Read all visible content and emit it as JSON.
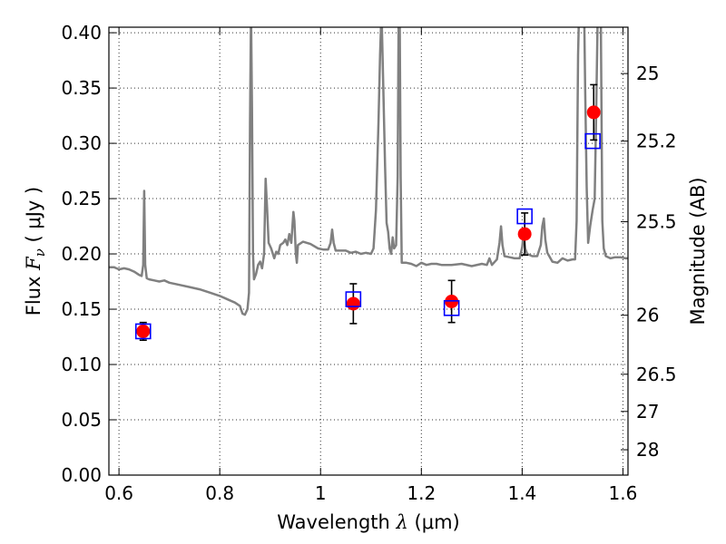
{
  "chart_data": {
    "type": "scatter",
    "xlabel": "Wavelength",
    "xlabel_symbol": "λ",
    "xlabel_unit": "μm",
    "ylabel": "Flux",
    "ylabel_symbol": "F",
    "ylabel_subscript": "ν",
    "ylabel_unit": "μJy",
    "y2label": "Magnitude (AB)",
    "xlim": [
      0.58,
      1.61
    ],
    "ylim": [
      0.0,
      0.405
    ],
    "grid": true,
    "x_ticks": [
      {
        "value": 0.6,
        "label": "0.6"
      },
      {
        "value": 0.8,
        "label": "0.8"
      },
      {
        "value": 1.0,
        "label": "1"
      },
      {
        "value": 1.2,
        "label": "1.2"
      },
      {
        "value": 1.4,
        "label": "1.4"
      },
      {
        "value": 1.6,
        "label": "1.6"
      }
    ],
    "y_ticks": [
      {
        "value": 0.0,
        "label": "0.00"
      },
      {
        "value": 0.05,
        "label": "0.05"
      },
      {
        "value": 0.1,
        "label": "0.10"
      },
      {
        "value": 0.15,
        "label": "0.15"
      },
      {
        "value": 0.2,
        "label": "0.20"
      },
      {
        "value": 0.25,
        "label": "0.25"
      },
      {
        "value": 0.3,
        "label": "0.30"
      },
      {
        "value": 0.35,
        "label": "0.35"
      },
      {
        "value": 0.4,
        "label": "0.40"
      }
    ],
    "y2_ticks": [
      {
        "value": 25.0,
        "label": "25"
      },
      {
        "value": 25.2,
        "label": "25.2"
      },
      {
        "value": 25.5,
        "label": "25.5"
      },
      {
        "value": 26.0,
        "label": "26"
      },
      {
        "value": 26.5,
        "label": "26.5"
      },
      {
        "value": 27.0,
        "label": "27"
      },
      {
        "value": 28.0,
        "label": "28"
      }
    ],
    "colors": {
      "model": "#808080",
      "observed": "#ff0000",
      "model_points": "#0000ff",
      "errorbar": "#000000"
    },
    "series": [
      {
        "kind": "line",
        "points": [
          [
            0.58,
            0.188
          ],
          [
            0.59,
            0.188
          ],
          [
            0.6,
            0.186
          ],
          [
            0.61,
            0.187
          ],
          [
            0.62,
            0.186
          ],
          [
            0.63,
            0.184
          ],
          [
            0.64,
            0.181
          ],
          [
            0.645,
            0.18
          ],
          [
            0.648,
            0.19
          ],
          [
            0.65,
            0.257
          ],
          [
            0.652,
            0.19
          ],
          [
            0.655,
            0.178
          ],
          [
            0.66,
            0.177
          ],
          [
            0.67,
            0.176
          ],
          [
            0.68,
            0.175
          ],
          [
            0.69,
            0.176
          ],
          [
            0.7,
            0.174
          ],
          [
            0.72,
            0.172
          ],
          [
            0.74,
            0.17
          ],
          [
            0.76,
            0.168
          ],
          [
            0.78,
            0.165
          ],
          [
            0.8,
            0.162
          ],
          [
            0.81,
            0.16
          ],
          [
            0.82,
            0.158
          ],
          [
            0.83,
            0.156
          ],
          [
            0.84,
            0.153
          ],
          [
            0.845,
            0.146
          ],
          [
            0.85,
            0.145
          ],
          [
            0.855,
            0.15
          ],
          [
            0.858,
            0.165
          ],
          [
            0.86,
            0.32
          ],
          [
            0.862,
            0.42
          ],
          [
            0.864,
            0.33
          ],
          [
            0.866,
            0.2
          ],
          [
            0.868,
            0.177
          ],
          [
            0.872,
            0.182
          ],
          [
            0.876,
            0.19
          ],
          [
            0.88,
            0.193
          ],
          [
            0.884,
            0.187
          ],
          [
            0.888,
            0.2
          ],
          [
            0.891,
            0.268
          ],
          [
            0.894,
            0.24
          ],
          [
            0.897,
            0.21
          ],
          [
            0.902,
            0.205
          ],
          [
            0.908,
            0.196
          ],
          [
            0.912,
            0.202
          ],
          [
            0.916,
            0.2
          ],
          [
            0.92,
            0.208
          ],
          [
            0.926,
            0.21
          ],
          [
            0.93,
            0.213
          ],
          [
            0.934,
            0.208
          ],
          [
            0.938,
            0.218
          ],
          [
            0.942,
            0.21
          ],
          [
            0.946,
            0.238
          ],
          [
            0.948,
            0.23
          ],
          [
            0.951,
            0.2
          ],
          [
            0.953,
            0.192
          ],
          [
            0.955,
            0.208
          ],
          [
            0.965,
            0.211
          ],
          [
            0.98,
            0.209
          ],
          [
            0.995,
            0.205
          ],
          [
            1.005,
            0.204
          ],
          [
            1.015,
            0.204
          ],
          [
            1.02,
            0.21
          ],
          [
            1.023,
            0.222
          ],
          [
            1.026,
            0.21
          ],
          [
            1.03,
            0.203
          ],
          [
            1.04,
            0.203
          ],
          [
            1.05,
            0.203
          ],
          [
            1.06,
            0.201
          ],
          [
            1.07,
            0.202
          ],
          [
            1.08,
            0.2
          ],
          [
            1.09,
            0.201
          ],
          [
            1.1,
            0.2
          ],
          [
            1.105,
            0.205
          ],
          [
            1.11,
            0.24
          ],
          [
            1.115,
            0.32
          ],
          [
            1.118,
            0.38
          ],
          [
            1.121,
            0.42
          ],
          [
            1.124,
            0.36
          ],
          [
            1.128,
            0.28
          ],
          [
            1.131,
            0.228
          ],
          [
            1.134,
            0.22
          ],
          [
            1.137,
            0.205
          ],
          [
            1.14,
            0.2
          ],
          [
            1.143,
            0.215
          ],
          [
            1.146,
            0.205
          ],
          [
            1.15,
            0.208
          ],
          [
            1.153,
            0.27
          ],
          [
            1.155,
            0.42
          ],
          [
            1.157,
            0.42
          ],
          [
            1.159,
            0.27
          ],
          [
            1.161,
            0.192
          ],
          [
            1.17,
            0.192
          ],
          [
            1.18,
            0.191
          ],
          [
            1.19,
            0.189
          ],
          [
            1.2,
            0.192
          ],
          [
            1.21,
            0.19
          ],
          [
            1.22,
            0.191
          ],
          [
            1.23,
            0.191
          ],
          [
            1.24,
            0.19
          ],
          [
            1.26,
            0.19
          ],
          [
            1.28,
            0.191
          ],
          [
            1.3,
            0.189
          ],
          [
            1.32,
            0.191
          ],
          [
            1.33,
            0.19
          ],
          [
            1.335,
            0.196
          ],
          [
            1.34,
            0.19
          ],
          [
            1.35,
            0.195
          ],
          [
            1.355,
            0.21
          ],
          [
            1.358,
            0.225
          ],
          [
            1.361,
            0.208
          ],
          [
            1.365,
            0.198
          ],
          [
            1.375,
            0.197
          ],
          [
            1.385,
            0.196
          ],
          [
            1.395,
            0.196
          ],
          [
            1.4,
            0.206
          ],
          [
            1.403,
            0.218
          ],
          [
            1.406,
            0.205
          ],
          [
            1.41,
            0.2
          ],
          [
            1.42,
            0.198
          ],
          [
            1.43,
            0.198
          ],
          [
            1.437,
            0.208
          ],
          [
            1.44,
            0.225
          ],
          [
            1.443,
            0.232
          ],
          [
            1.446,
            0.213
          ],
          [
            1.45,
            0.201
          ],
          [
            1.46,
            0.193
          ],
          [
            1.47,
            0.192
          ],
          [
            1.48,
            0.196
          ],
          [
            1.49,
            0.194
          ],
          [
            1.5,
            0.195
          ],
          [
            1.505,
            0.195
          ],
          [
            1.508,
            0.23
          ],
          [
            1.511,
            0.38
          ],
          [
            1.513,
            0.42
          ],
          [
            1.52,
            0.42
          ],
          [
            1.523,
            0.42
          ],
          [
            1.525,
            0.35
          ],
          [
            1.528,
            0.26
          ],
          [
            1.531,
            0.21
          ],
          [
            1.535,
            0.225
          ],
          [
            1.54,
            0.24
          ],
          [
            1.544,
            0.25
          ],
          [
            1.547,
            0.33
          ],
          [
            1.55,
            0.42
          ],
          [
            1.556,
            0.42
          ],
          [
            1.559,
            0.23
          ],
          [
            1.562,
            0.205
          ],
          [
            1.566,
            0.198
          ],
          [
            1.575,
            0.196
          ],
          [
            1.585,
            0.197
          ],
          [
            1.595,
            0.197
          ],
          [
            1.605,
            0.196
          ],
          [
            1.61,
            0.196
          ]
        ]
      },
      {
        "kind": "observed",
        "points": [
          {
            "x": 0.648,
            "y": 0.13,
            "err": 0.008
          },
          {
            "x": 1.065,
            "y": 0.155,
            "err": 0.018
          },
          {
            "x": 1.26,
            "y": 0.157,
            "err": 0.019
          },
          {
            "x": 1.405,
            "y": 0.218,
            "err": 0.019
          },
          {
            "x": 1.542,
            "y": 0.328,
            "err": 0.025
          }
        ]
      },
      {
        "kind": "model_points",
        "points": [
          {
            "x": 0.648,
            "y": 0.13
          },
          {
            "x": 1.065,
            "y": 0.159
          },
          {
            "x": 1.26,
            "y": 0.151
          },
          {
            "x": 1.405,
            "y": 0.234
          },
          {
            "x": 1.54,
            "y": 0.302
          }
        ]
      }
    ]
  }
}
